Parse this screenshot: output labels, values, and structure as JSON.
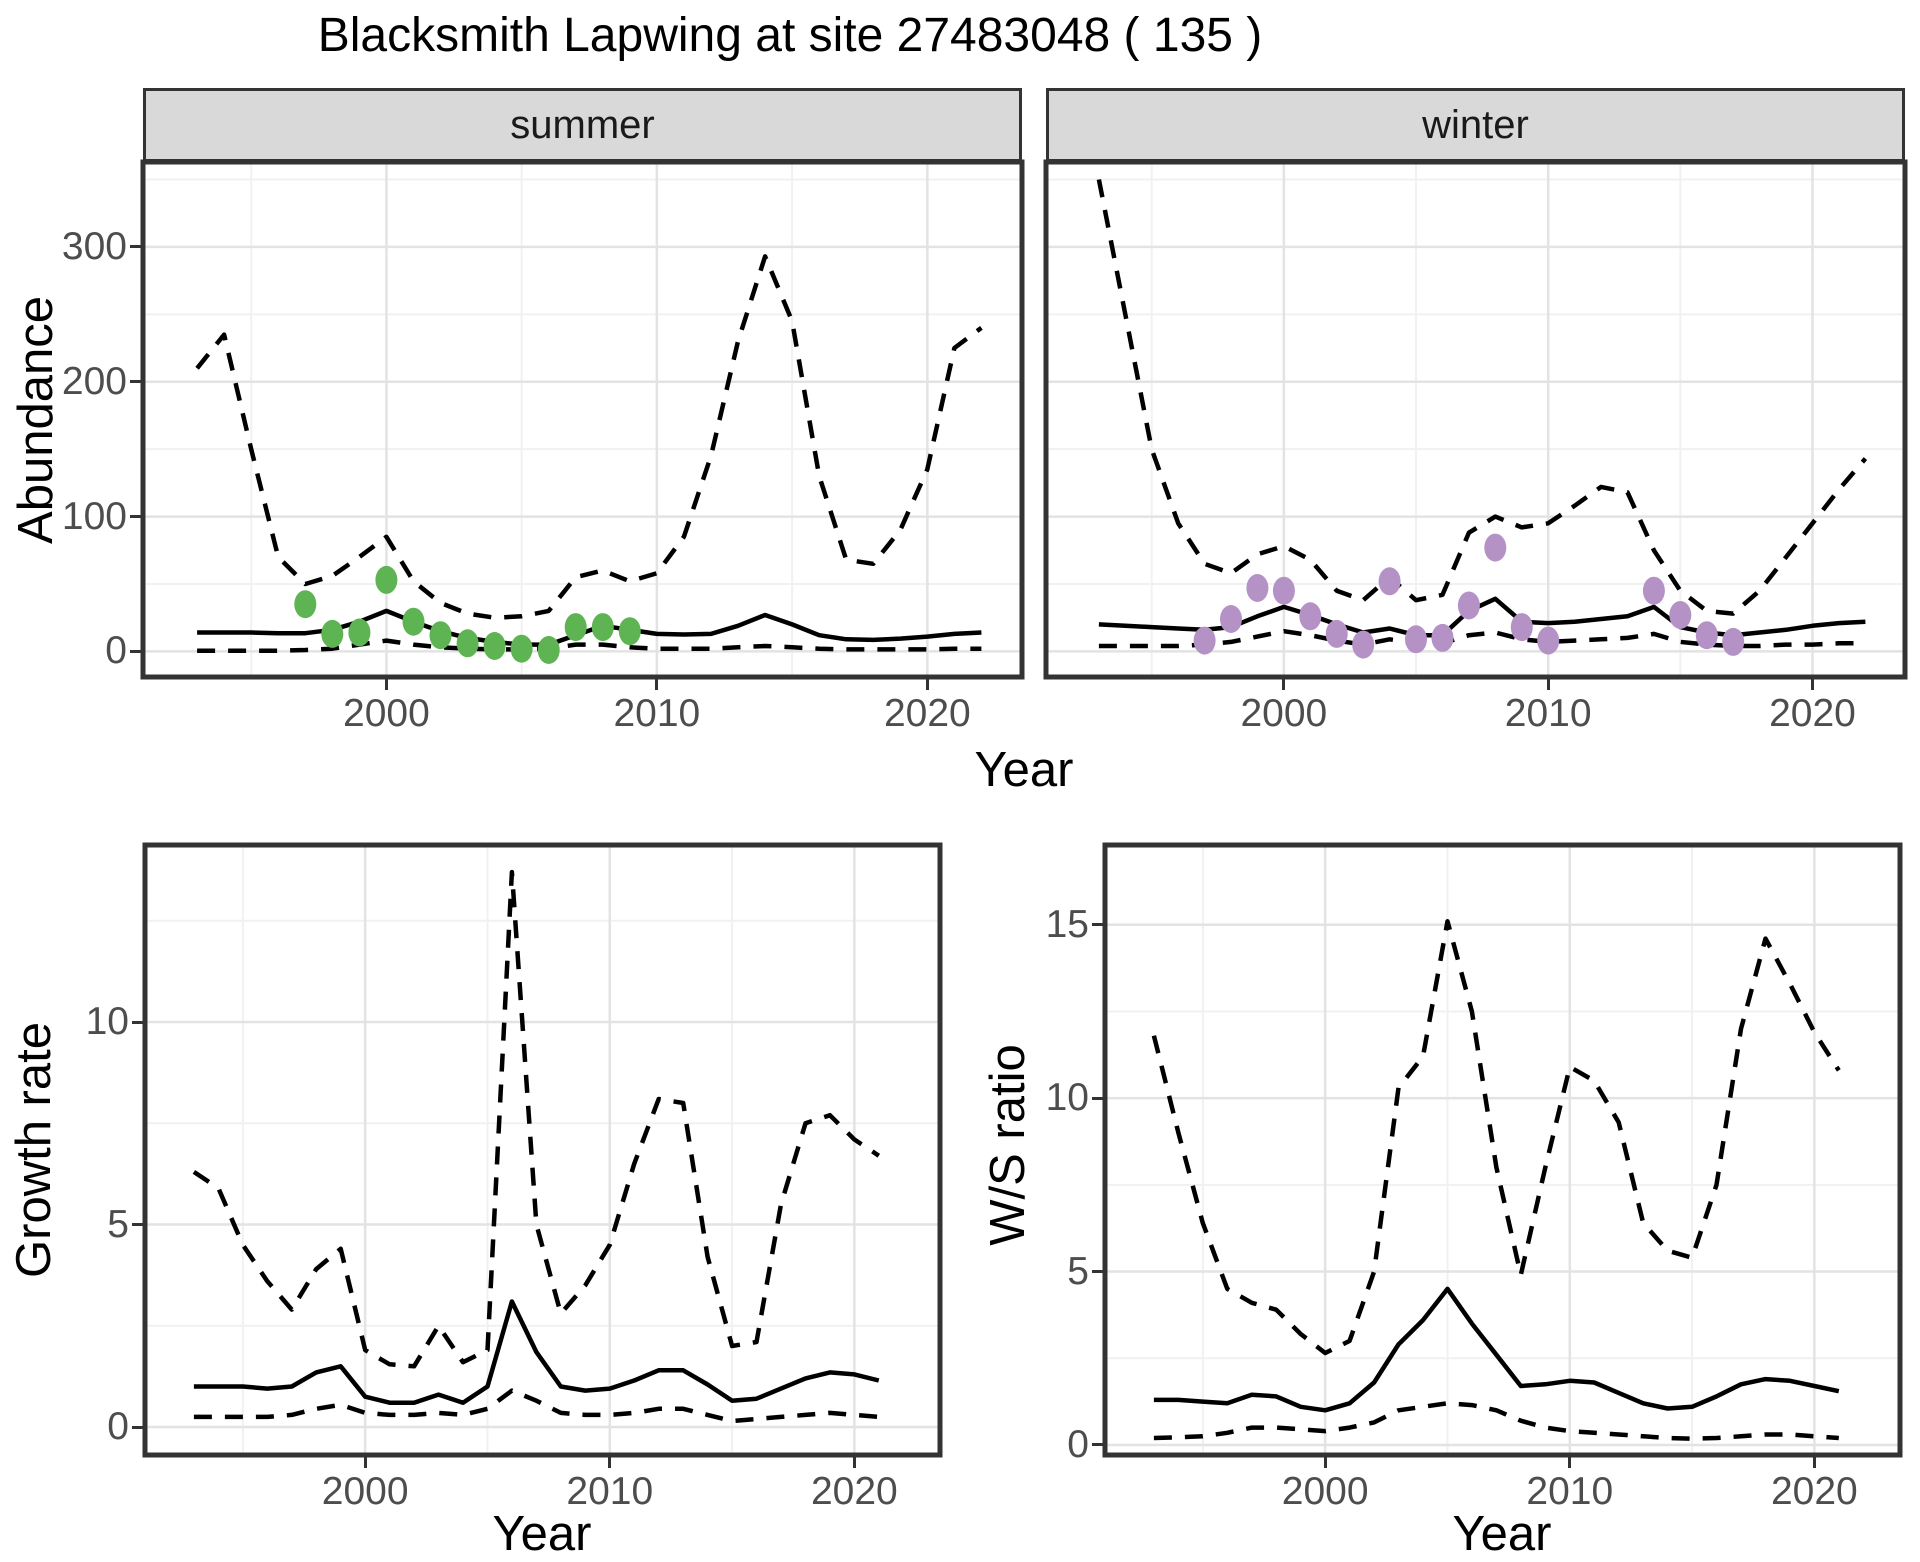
{
  "title": "Blacksmith Lapwing at site 27483048 ( 135 )",
  "top": {
    "ylabel": "Abundance",
    "xlabel": "Year",
    "facets": [
      "summer",
      "winter"
    ]
  },
  "bottom_left": {
    "ylabel": "Growth rate",
    "xlabel": "Year"
  },
  "bottom_right": {
    "ylabel": "W/S ratio",
    "xlabel": "Year"
  },
  "colors": {
    "summer_point": "#5eb453",
    "winter_point": "#b592c6",
    "line": "#000000",
    "grid_major": "#e3e3e3",
    "grid_minor": "#f1f1f1",
    "strip_bg": "#d9d9d9",
    "panel_border": "#333333",
    "axis_text": "#4d4d4d"
  },
  "chart_data": [
    {
      "id": "abundance_summer",
      "type": "line",
      "facet": "summer",
      "title": "",
      "xlabel": "Year",
      "ylabel": "Abundance",
      "xticks": [
        2000,
        2010,
        2020
      ],
      "yticks": [
        0,
        100,
        200,
        300
      ],
      "xlim": [
        1991,
        2023.5
      ],
      "ylim": [
        -19,
        363
      ],
      "grid": "on",
      "x": [
        1993,
        1994,
        1995,
        1996,
        1997,
        1998,
        1999,
        2000,
        2001,
        2002,
        2003,
        2004,
        2005,
        2006,
        2007,
        2008,
        2009,
        2010,
        2011,
        2012,
        2013,
        2014,
        2015,
        2016,
        2017,
        2018,
        2019,
        2020,
        2021,
        2022
      ],
      "series": [
        {
          "name": "lower_95",
          "style": "dashed",
          "values": [
            0.5,
            0.5,
            0.5,
            0.5,
            1,
            2,
            5,
            8,
            5,
            3,
            2,
            1.5,
            1.5,
            2,
            5,
            5,
            3,
            2,
            2,
            2,
            3,
            4,
            3,
            2,
            1.5,
            1.5,
            1.5,
            1.5,
            2,
            2
          ]
        },
        {
          "name": "upper_95",
          "style": "dashed",
          "values": [
            210,
            235,
            150,
            70,
            50,
            56,
            70,
            85,
            52,
            36,
            28,
            25,
            26,
            30,
            55,
            60,
            52,
            58,
            85,
            145,
            230,
            293,
            245,
            130,
            68,
            65,
            90,
            135,
            225,
            240
          ]
        },
        {
          "name": "median",
          "style": "solid",
          "values": [
            14,
            14,
            14,
            13.5,
            13.5,
            16,
            22,
            30,
            22,
            15,
            10,
            7,
            5,
            5,
            12,
            19,
            16,
            13,
            12.5,
            13,
            19,
            27,
            20,
            12,
            9,
            8.5,
            9.5,
            11,
            13,
            14
          ]
        }
      ],
      "points": {
        "name": "observed-count",
        "years": [
          1997,
          1998,
          1999,
          2000,
          2001,
          2002,
          2003,
          2004,
          2005,
          2006,
          2007,
          2008,
          2009
        ],
        "values": [
          35,
          13,
          14,
          53,
          22,
          12,
          6,
          4,
          2,
          1,
          18,
          18,
          15
        ]
      }
    },
    {
      "id": "abundance_winter",
      "type": "line",
      "facet": "winter",
      "title": "",
      "xlabel": "Year",
      "ylabel": "Abundance",
      "xticks": [
        2000,
        2010,
        2020
      ],
      "yticks": [],
      "xlim": [
        1991,
        2023.5
      ],
      "ylim": [
        -19,
        363
      ],
      "grid": "on",
      "x": [
        1993,
        1994,
        1995,
        1996,
        1997,
        1998,
        1999,
        2000,
        2001,
        2002,
        2003,
        2004,
        2005,
        2006,
        2007,
        2008,
        2009,
        2010,
        2011,
        2012,
        2013,
        2014,
        2015,
        2016,
        2017,
        2018,
        2019,
        2020,
        2021,
        2022
      ],
      "series": [
        {
          "name": "lower_95",
          "style": "dashed",
          "values": [
            4,
            4,
            4,
            4,
            5,
            7,
            11,
            15,
            12,
            8,
            5,
            9,
            6,
            6,
            12,
            14,
            9,
            7,
            8,
            9,
            10,
            13,
            7,
            5,
            4,
            4,
            5,
            5,
            6,
            6
          ]
        },
        {
          "name": "upper_95",
          "style": "dashed",
          "values": [
            350,
            250,
            150,
            95,
            65,
            58,
            72,
            78,
            68,
            45,
            38,
            55,
            38,
            42,
            88,
            100,
            92,
            95,
            108,
            122,
            118,
            75,
            45,
            30,
            28,
            45,
            70,
            95,
            120,
            143
          ]
        },
        {
          "name": "median",
          "style": "solid",
          "values": [
            20,
            19,
            18,
            17,
            16,
            18,
            26,
            33,
            27,
            20,
            14,
            17,
            12,
            12,
            30,
            39,
            22,
            21,
            22,
            24,
            26,
            33,
            18,
            14,
            12,
            14,
            16,
            19,
            21,
            22
          ]
        }
      ],
      "points": {
        "name": "observed-count",
        "years": [
          1997,
          1998,
          1999,
          2000,
          2001,
          2002,
          2003,
          2004,
          2005,
          2006,
          2007,
          2008,
          2009,
          2010,
          2014,
          2015,
          2016,
          2017
        ],
        "values": [
          8,
          24,
          47,
          45,
          26,
          13,
          5,
          52,
          9,
          10,
          34,
          77,
          18,
          8,
          45,
          27,
          12,
          7
        ]
      }
    },
    {
      "id": "growth_rate",
      "type": "line",
      "title": "",
      "xlabel": "Year",
      "ylabel": "Growth rate",
      "xticks": [
        2000,
        2010,
        2020
      ],
      "yticks": [
        0,
        5,
        10
      ],
      "xlim": [
        1991,
        2023.5
      ],
      "ylim": [
        -0.69,
        14.37
      ],
      "grid": "on",
      "x": [
        1993,
        1994,
        1995,
        1996,
        1997,
        1998,
        1999,
        2000,
        2001,
        2002,
        2003,
        2004,
        2005,
        2006,
        2007,
        2008,
        2009,
        2010,
        2011,
        2012,
        2013,
        2014,
        2015,
        2016,
        2017,
        2018,
        2019,
        2020,
        2021
      ],
      "series": [
        {
          "name": "lower_95",
          "style": "dashed",
          "values": [
            0.25,
            0.25,
            0.25,
            0.25,
            0.3,
            0.45,
            0.55,
            0.35,
            0.3,
            0.3,
            0.35,
            0.3,
            0.45,
            0.9,
            0.65,
            0.35,
            0.3,
            0.3,
            0.35,
            0.45,
            0.45,
            0.3,
            0.15,
            0.2,
            0.25,
            0.3,
            0.35,
            0.3,
            0.25
          ]
        },
        {
          "name": "upper_95",
          "style": "dashed",
          "values": [
            6.3,
            5.9,
            4.5,
            3.6,
            2.9,
            3.9,
            4.4,
            1.9,
            1.55,
            1.5,
            2.5,
            1.6,
            1.9,
            13.7,
            5.0,
            2.8,
            3.5,
            4.5,
            6.5,
            8.1,
            8.0,
            4.2,
            2.0,
            2.1,
            5.5,
            7.5,
            7.7,
            7.1,
            6.7
          ]
        },
        {
          "name": "median",
          "style": "solid",
          "values": [
            1.0,
            1.0,
            1.0,
            0.95,
            1.0,
            1.35,
            1.5,
            0.75,
            0.6,
            0.6,
            0.8,
            0.6,
            1.0,
            3.1,
            1.85,
            1.0,
            0.9,
            0.95,
            1.15,
            1.4,
            1.4,
            1.05,
            0.65,
            0.7,
            0.95,
            1.2,
            1.35,
            1.3,
            1.15
          ]
        }
      ],
      "points": null
    },
    {
      "id": "ws_ratio",
      "type": "line",
      "title": "",
      "xlabel": "Year",
      "ylabel": "W/S ratio",
      "xticks": [
        2000,
        2010,
        2020
      ],
      "yticks": [
        0,
        5,
        10,
        15
      ],
      "xlim": [
        1991,
        2023.5
      ],
      "ylim": [
        -0.29,
        17.3
      ],
      "grid": "on",
      "x": [
        1993,
        1994,
        1995,
        1996,
        1997,
        1998,
        1999,
        2000,
        2001,
        2002,
        2003,
        2004,
        2005,
        2006,
        2007,
        2008,
        2009,
        2010,
        2011,
        2012,
        2013,
        2014,
        2015,
        2016,
        2017,
        2018,
        2019,
        2020,
        2021
      ],
      "series": [
        {
          "name": "lower_95",
          "style": "dashed",
          "values": [
            0.2,
            0.22,
            0.25,
            0.35,
            0.5,
            0.5,
            0.45,
            0.4,
            0.5,
            0.65,
            1.0,
            1.1,
            1.2,
            1.15,
            1.0,
            0.7,
            0.5,
            0.4,
            0.35,
            0.3,
            0.25,
            0.2,
            0.18,
            0.2,
            0.25,
            0.3,
            0.3,
            0.25,
            0.2
          ]
        },
        {
          "name": "upper_95",
          "style": "dashed",
          "values": [
            11.8,
            9.0,
            6.4,
            4.5,
            4.1,
            3.9,
            3.2,
            2.65,
            3.0,
            5.0,
            10.3,
            11.2,
            15.1,
            12.5,
            8.0,
            4.9,
            8.0,
            10.9,
            10.5,
            9.3,
            6.4,
            5.6,
            5.4,
            7.5,
            12.0,
            14.6,
            13.3,
            11.9,
            10.8
          ]
        },
        {
          "name": "median",
          "style": "solid",
          "values": [
            1.3,
            1.3,
            1.25,
            1.2,
            1.45,
            1.4,
            1.1,
            1.0,
            1.2,
            1.8,
            2.9,
            3.6,
            4.5,
            3.5,
            2.6,
            1.7,
            1.75,
            1.85,
            1.8,
            1.5,
            1.2,
            1.05,
            1.1,
            1.4,
            1.75,
            1.9,
            1.85,
            1.7,
            1.55
          ]
        }
      ],
      "points": null
    }
  ]
}
